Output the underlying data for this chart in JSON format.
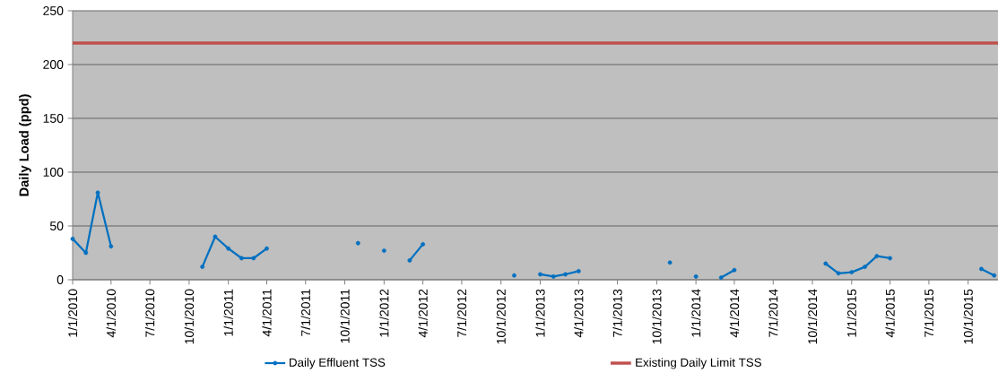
{
  "chart_data": {
    "type": "line",
    "ylabel": "Daily Load (ppd)",
    "x": [
      "2010-01-01",
      "2010-02-01",
      "2010-03-01",
      "2010-04-01",
      "2010-05-01",
      "2010-06-01",
      "2010-07-01",
      "2010-08-01",
      "2010-09-01",
      "2010-10-01",
      "2010-11-01",
      "2010-12-01",
      "2011-01-01",
      "2011-02-01",
      "2011-03-01",
      "2011-04-01",
      "2011-05-01",
      "2011-06-01",
      "2011-07-01",
      "2011-08-01",
      "2011-09-01",
      "2011-10-01",
      "2011-11-01",
      "2011-12-01",
      "2012-01-01",
      "2012-02-01",
      "2012-03-01",
      "2012-04-01",
      "2012-05-01",
      "2012-06-01",
      "2012-07-01",
      "2012-08-01",
      "2012-09-01",
      "2012-10-01",
      "2012-11-01",
      "2012-12-01",
      "2013-01-01",
      "2013-02-01",
      "2013-03-01",
      "2013-04-01",
      "2013-05-01",
      "2013-06-01",
      "2013-07-01",
      "2013-08-01",
      "2013-09-01",
      "2013-10-01",
      "2013-11-01",
      "2013-12-01",
      "2014-01-01",
      "2014-02-01",
      "2014-03-01",
      "2014-04-01",
      "2014-05-01",
      "2014-06-01",
      "2014-07-01",
      "2014-08-01",
      "2014-09-01",
      "2014-10-01",
      "2014-11-01",
      "2014-12-01",
      "2015-01-01",
      "2015-02-01",
      "2015-03-01",
      "2015-04-01",
      "2015-05-01",
      "2015-06-01",
      "2015-07-01",
      "2015-08-01",
      "2015-09-01",
      "2015-10-01",
      "2015-11-01",
      "2015-12-01"
    ],
    "series": [
      {
        "name": "Daily Effluent TSS",
        "color": "#0070c0",
        "values": [
          38,
          25,
          81,
          31,
          null,
          null,
          null,
          null,
          null,
          null,
          12,
          40,
          29,
          20,
          20,
          29,
          null,
          null,
          null,
          null,
          null,
          null,
          34,
          null,
          27,
          null,
          18,
          33,
          null,
          null,
          null,
          null,
          null,
          null,
          4,
          null,
          5,
          3,
          5,
          8,
          null,
          null,
          null,
          null,
          null,
          null,
          16,
          null,
          3,
          null,
          2,
          9,
          null,
          null,
          null,
          null,
          null,
          null,
          15,
          6,
          7,
          12,
          22,
          20,
          null,
          null,
          null,
          null,
          null,
          null,
          10,
          4
        ]
      }
    ],
    "xlim": [
      "2010-01-01",
      "2015-12-10"
    ],
    "xticks": [
      {
        "value": "2010-01-01",
        "label": "1/1/2010"
      },
      {
        "value": "2010-04-01",
        "label": "4/1/2010"
      },
      {
        "value": "2010-07-01",
        "label": "7/1/2010"
      },
      {
        "value": "2010-10-01",
        "label": "10/1/2010"
      },
      {
        "value": "2011-01-01",
        "label": "1/1/2011"
      },
      {
        "value": "2011-04-01",
        "label": "4/1/2011"
      },
      {
        "value": "2011-07-01",
        "label": "7/1/2011"
      },
      {
        "value": "2011-10-01",
        "label": "10/1/2011"
      },
      {
        "value": "2012-01-01",
        "label": "1/1/2012"
      },
      {
        "value": "2012-04-01",
        "label": "4/1/2012"
      },
      {
        "value": "2012-07-01",
        "label": "7/1/2012"
      },
      {
        "value": "2012-10-01",
        "label": "10/1/2012"
      },
      {
        "value": "2013-01-01",
        "label": "1/1/2013"
      },
      {
        "value": "2013-04-01",
        "label": "4/1/2013"
      },
      {
        "value": "2013-07-01",
        "label": "7/1/2013"
      },
      {
        "value": "2013-10-01",
        "label": "10/1/2013"
      },
      {
        "value": "2014-01-01",
        "label": "1/1/2014"
      },
      {
        "value": "2014-04-01",
        "label": "4/1/2014"
      },
      {
        "value": "2014-07-01",
        "label": "7/1/2014"
      },
      {
        "value": "2014-10-01",
        "label": "10/1/2014"
      },
      {
        "value": "2015-01-01",
        "label": "1/1/2015"
      },
      {
        "value": "2015-04-01",
        "label": "4/1/2015"
      },
      {
        "value": "2015-07-01",
        "label": "7/1/2015"
      },
      {
        "value": "2015-10-01",
        "label": "10/1/2015"
      }
    ],
    "ylim": [
      0,
      250
    ],
    "yticks": [
      0,
      50,
      100,
      150,
      200,
      250
    ],
    "ref_lines": [
      {
        "axis": "y",
        "value": 220,
        "label": "Existing Daily Limit TSS",
        "color": "#c0504d"
      }
    ],
    "grid": "y",
    "legend": "bottom",
    "marker": "circle",
    "line_style": "solid"
  }
}
